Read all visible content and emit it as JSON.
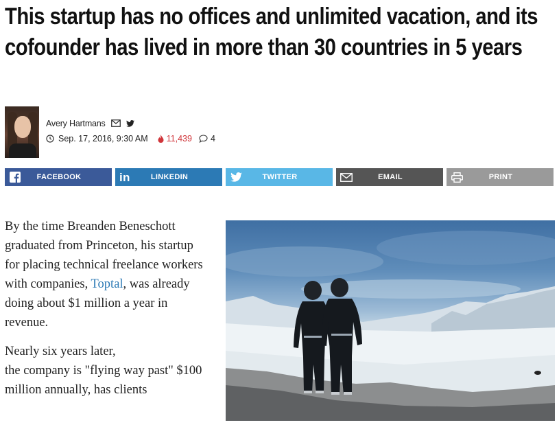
{
  "article": {
    "headline": "This startup has no offices and unlimited vacation, and its cofounder has lived in more than 30 countries in 5 years",
    "author": {
      "name": "Avery Hartmans",
      "date": "Sep. 17, 2016, 9:30 AM",
      "views": "11,439",
      "comments": "4"
    },
    "share": {
      "facebook": "FACEBOOK",
      "linkedin": "LINKEDIN",
      "twitter": "TWITTER",
      "email": "EMAIL",
      "print": "PRINT"
    },
    "body": {
      "p1_before": "By the time Breanden Beneschott graduated from Princeton, his startup for placing technical freelance workers with companies, ",
      "p1_link": "Toptal",
      "p1_after": ", was already doing about $1 million a year in revenue.",
      "p2_line1": "Nearly six years later,",
      "p2_rest": "the company is \"flying way past\" $100 million annually, has clients"
    }
  },
  "colors": {
    "facebook": "#3b5a99",
    "linkedin": "#2c7ab5",
    "twitter": "#59b7e6",
    "email": "#555555",
    "print": "#9a9a9a",
    "views": "#d0353a",
    "link": "#2c7ab5"
  },
  "icons": [
    "mail-icon",
    "twitter-bird-icon",
    "clock-icon",
    "flame-icon",
    "comment-bubble-icon",
    "facebook-icon",
    "linkedin-icon",
    "twitter-icon",
    "envelope-icon",
    "printer-icon"
  ]
}
